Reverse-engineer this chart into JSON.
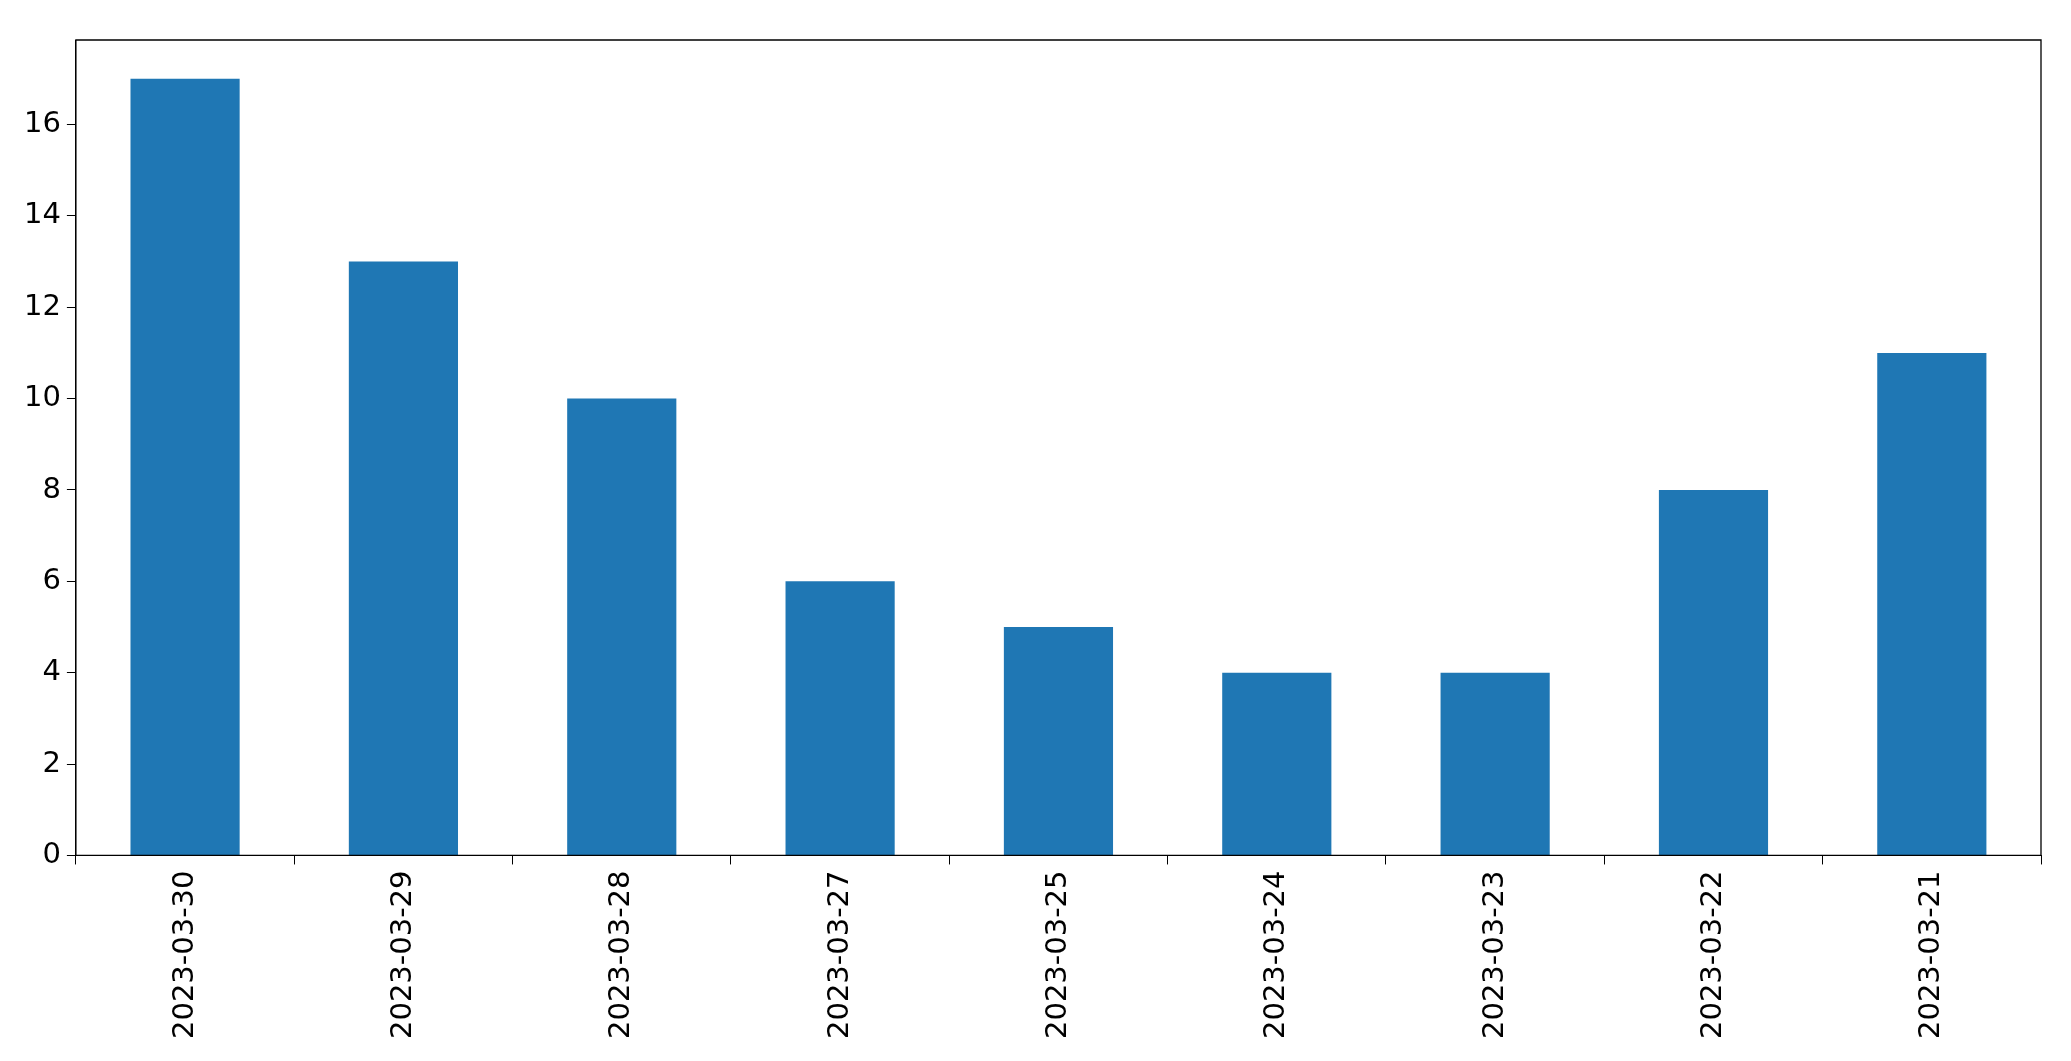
{
  "chart_data": {
    "type": "bar",
    "categories": [
      "2023-03-30",
      "2023-03-29",
      "2023-03-28",
      "2023-03-27",
      "2023-03-25",
      "2023-03-24",
      "2023-03-23",
      "2023-03-22",
      "2023-03-21"
    ],
    "values": [
      17,
      13,
      10,
      6,
      5,
      4,
      4,
      8,
      11
    ],
    "color": "#1f77b4",
    "ylim": [
      0,
      17.85
    ],
    "yticks": [
      0,
      2,
      4,
      6,
      8,
      10,
      12,
      14,
      16
    ],
    "grid": false,
    "legend": false
  }
}
